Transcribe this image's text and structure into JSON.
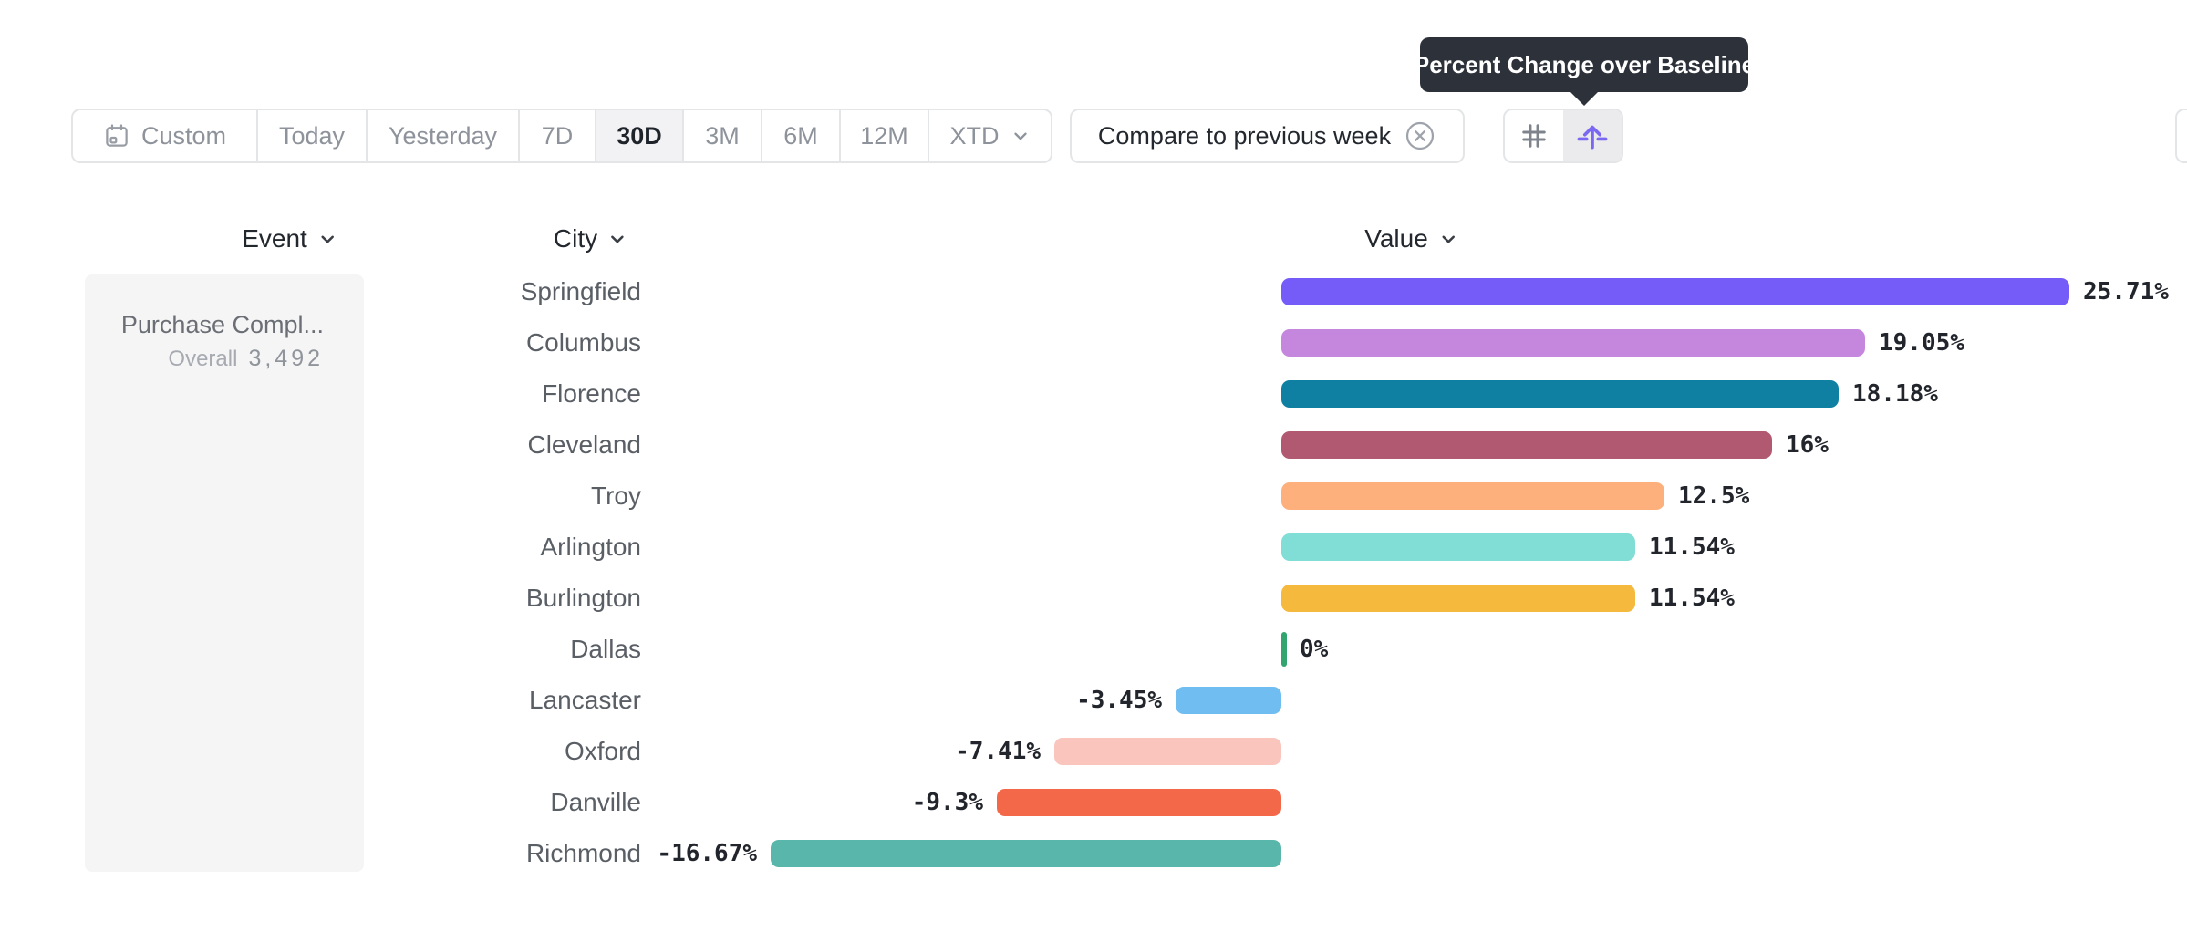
{
  "tooltip": {
    "text": "Percent Change over Baseline"
  },
  "toolbar": {
    "ranges": [
      "Custom",
      "Today",
      "Yesterday",
      "7D",
      "30D",
      "3M",
      "6M",
      "12M",
      "XTD"
    ],
    "selected_range": "30D",
    "compare_chip_label": "Compare to previous week",
    "icons": {
      "custom_range": "calendar-icon",
      "range_expand": "chevron-down-icon",
      "compare_remove": "circle-x-icon",
      "view_grid": "hash-grid-icon",
      "view_baseline": "arrow-up-baseline-icon"
    },
    "accent_color": "#7B68F2"
  },
  "columns": {
    "event": "Event",
    "city": "City",
    "value": "Value"
  },
  "event_card": {
    "name": "Purchase Compl...",
    "overall_label": "Overall",
    "overall_value": "3,492"
  },
  "chart_data": {
    "type": "bar",
    "orientation": "horizontal",
    "title": "Percent Change over Baseline",
    "categories": [
      "Springfield",
      "Columbus",
      "Florence",
      "Cleveland",
      "Troy",
      "Arlington",
      "Burlington",
      "Dallas",
      "Lancaster",
      "Oxford",
      "Danville",
      "Richmond"
    ],
    "values": [
      25.71,
      19.05,
      18.18,
      16,
      12.5,
      11.54,
      11.54,
      0,
      -3.45,
      -7.41,
      -9.3,
      -16.67
    ],
    "labels": [
      "25.71%",
      "19.05%",
      "18.18%",
      "16%",
      "12.5%",
      "11.54%",
      "11.54%",
      "0%",
      "-3.45%",
      "-7.41%",
      "-9.3%",
      "-16.67%"
    ],
    "colors": [
      "#755CF8",
      "#C487DD",
      "#0F7FA2",
      "#B05970",
      "#FDB07C",
      "#81DED6",
      "#F5BA3D",
      "#32A470",
      "#6FBDF1",
      "#FAC5BD",
      "#F4684A",
      "#58B6AA"
    ],
    "baseline": 0,
    "unit": "%",
    "xlim": [
      -16.67,
      25.71
    ],
    "legend": "none",
    "grid": false
  }
}
